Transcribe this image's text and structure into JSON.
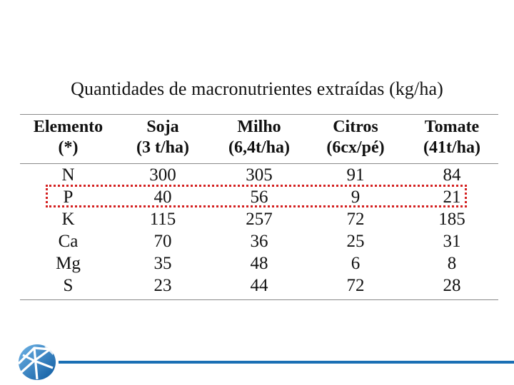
{
  "caption": "Quantidades de macronutrientes extraídas (kg/ha)",
  "headers": [
    {
      "line1": "Elemento",
      "line2": "(*)"
    },
    {
      "line1": "Soja",
      "line2": "(3 t/ha)"
    },
    {
      "line1": "Milho",
      "line2": "(6,4t/ha)"
    },
    {
      "line1": "Citros",
      "line2": "(6cx/pé)"
    },
    {
      "line1": "Tomate",
      "line2": "(41t/ha)"
    }
  ],
  "rows": [
    [
      "N",
      "300",
      "305",
      "91",
      "84"
    ],
    [
      "P",
      "40",
      "56",
      "9",
      "21"
    ],
    [
      "K",
      "115",
      "257",
      "72",
      "185"
    ],
    [
      "Ca",
      "70",
      "36",
      "25",
      "31"
    ],
    [
      "Mg",
      "35",
      "48",
      "6",
      "8"
    ],
    [
      "S",
      "23",
      "44",
      "72",
      "28"
    ]
  ],
  "highlighted_row": "P",
  "colors": {
    "highlight": "#d42020",
    "footer_line": "#1a6fb4",
    "logo": "#1a6fb4"
  },
  "icons": {
    "logo": "university-logo-icon"
  }
}
